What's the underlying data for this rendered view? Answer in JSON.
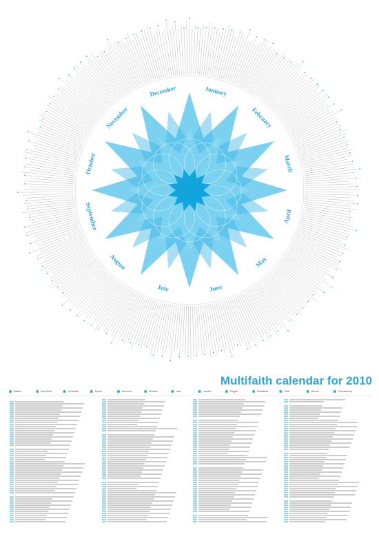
{
  "title": "Multifaith calendar for 2010",
  "months": [
    "January",
    "February",
    "March",
    "April",
    "May",
    "June",
    "July",
    "August",
    "September",
    "October",
    "November",
    "December"
  ],
  "legend": [
    "Bahai",
    "Buddhist",
    "Christian",
    "Hindu",
    "Mormon",
    "Muslim",
    "Jain",
    "Jewish",
    "Pagan",
    "Rastafari",
    "Sikh",
    "Wicca",
    "Zoroastrian"
  ]
}
